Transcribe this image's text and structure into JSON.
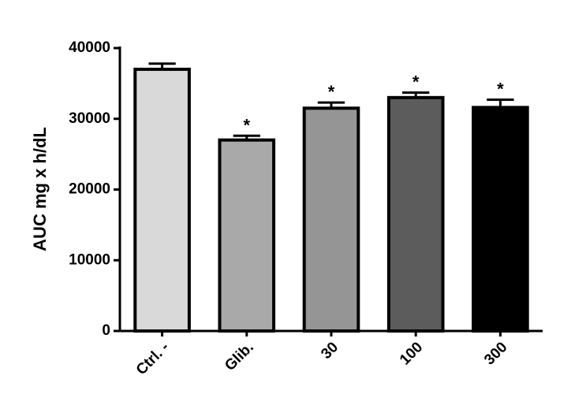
{
  "chart_data": {
    "type": "bar",
    "ylabel": "AUC mg x h/dL",
    "categories": [
      "Ctrl. -",
      "Glib.",
      "30",
      "100",
      "300"
    ],
    "values": [
      37000,
      27000,
      31500,
      33000,
      31600
    ],
    "errors": [
      800,
      600,
      800,
      700,
      1100
    ],
    "colors": [
      "#d9d9d9",
      "#a9a9a9",
      "#959595",
      "#5c5c5c",
      "#000000"
    ],
    "annotations": [
      {
        "category": "Glib.",
        "text": "*"
      },
      {
        "category": "30",
        "text": "*"
      },
      {
        "category": "100",
        "text": "*"
      },
      {
        "category": "300",
        "text": "*"
      }
    ],
    "ylim": [
      0,
      40000
    ],
    "yticks": [
      0,
      10000,
      20000,
      30000,
      40000
    ],
    "grid": false
  }
}
